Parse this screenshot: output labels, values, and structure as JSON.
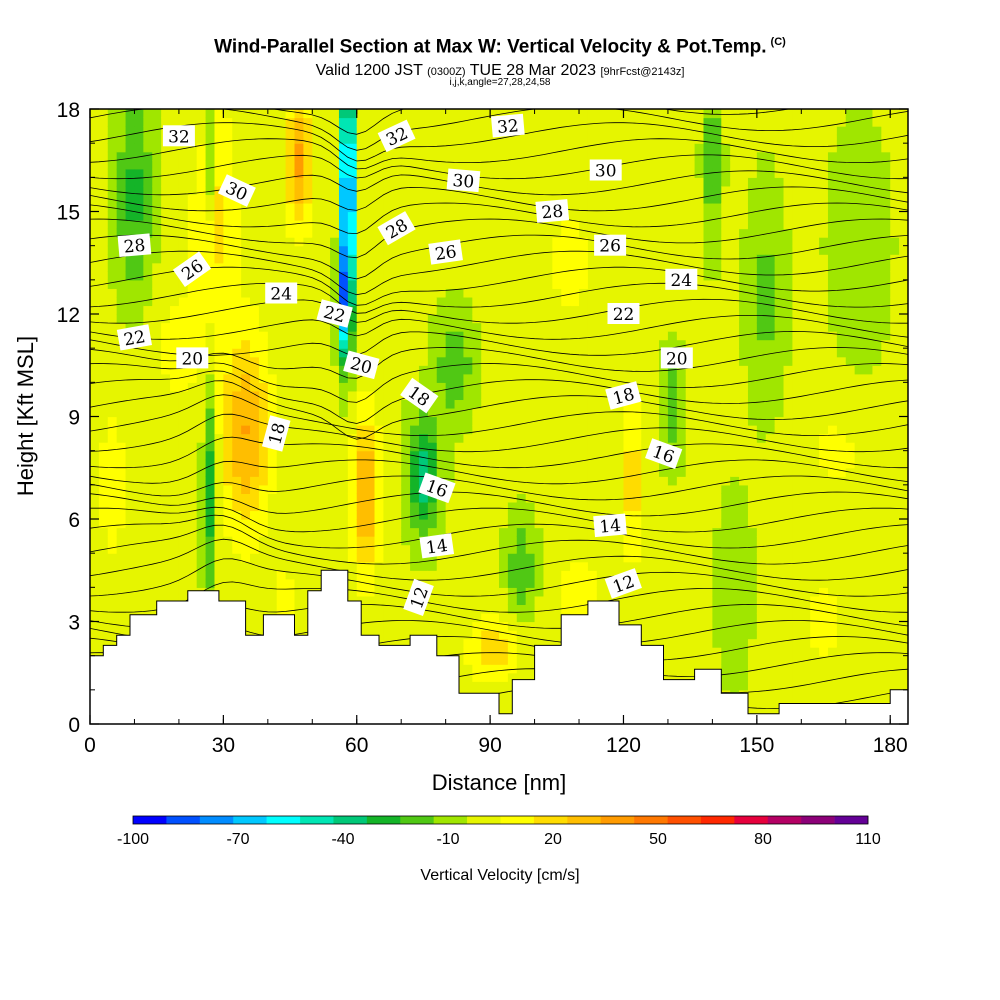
{
  "title": {
    "main": "Wind-Parallel Section at Max W: Vertical Velocity & Pot.Temp.",
    "copyright": "(C)",
    "valid_prefix": "Valid 1200 JST",
    "valid_utc": "(0300Z)",
    "valid_date": "TUE 28 Mar 2023",
    "forecast": "[9hrFcst@2143z]",
    "section_params": "i,j,k,angle=27,28,24,58"
  },
  "chart_data": {
    "type": "heatmap",
    "xlabel": "Distance [nm]",
    "ylabel": "Height [Kft MSL]",
    "xlim": [
      0,
      184
    ],
    "ylim": [
      0,
      18
    ],
    "x_ticks": [
      "0",
      "30",
      "60",
      "90",
      "120",
      "150",
      "180"
    ],
    "y_ticks": [
      "0",
      "3",
      "6",
      "9",
      "12",
      "15",
      "18"
    ],
    "colorbar": {
      "label": "Vertical Velocity [cm/s]",
      "tick_labels": [
        "-100",
        "-70",
        "-40",
        "-10",
        "20",
        "50",
        "80",
        "110"
      ],
      "levels": [
        -100,
        -90,
        -80,
        -70,
        -60,
        -50,
        -40,
        -30,
        -20,
        -10,
        0,
        10,
        20,
        30,
        40,
        50,
        60,
        70,
        80,
        90,
        100,
        110
      ],
      "colors": [
        "#0000ff",
        "#0050ff",
        "#008cff",
        "#00c8ff",
        "#00ffff",
        "#00e6b4",
        "#00c878",
        "#14b428",
        "#50c814",
        "#a0e600",
        "#e6f500",
        "#ffff00",
        "#ffdc00",
        "#ffbe00",
        "#ff9b00",
        "#ff7800",
        "#ff5000",
        "#ff2800",
        "#e6003c",
        "#b40064",
        "#8c0078",
        "#640096"
      ]
    },
    "terrain_kft": [
      [
        0,
        2.0
      ],
      [
        3,
        2.0
      ],
      [
        3,
        2.3
      ],
      [
        6,
        2.3
      ],
      [
        6,
        2.6
      ],
      [
        9,
        2.6
      ],
      [
        9,
        3.2
      ],
      [
        15,
        3.2
      ],
      [
        15,
        3.6
      ],
      [
        22,
        3.6
      ],
      [
        22,
        3.9
      ],
      [
        29,
        3.9
      ],
      [
        29,
        3.6
      ],
      [
        35,
        3.6
      ],
      [
        35,
        2.6
      ],
      [
        39,
        2.6
      ],
      [
        39,
        3.2
      ],
      [
        46,
        3.2
      ],
      [
        46,
        2.6
      ],
      [
        49,
        2.6
      ],
      [
        49,
        3.9
      ],
      [
        52,
        3.9
      ],
      [
        52,
        4.5
      ],
      [
        58,
        4.5
      ],
      [
        58,
        3.6
      ],
      [
        61,
        3.6
      ],
      [
        61,
        2.6
      ],
      [
        65,
        2.6
      ],
      [
        65,
        2.3
      ],
      [
        72,
        2.3
      ],
      [
        72,
        2.6
      ],
      [
        78,
        2.6
      ],
      [
        78,
        2.0
      ],
      [
        83,
        2.0
      ],
      [
        83,
        0.9
      ],
      [
        92,
        0.9
      ],
      [
        92,
        0.3
      ],
      [
        95,
        0.3
      ],
      [
        95,
        1.3
      ],
      [
        100,
        1.3
      ],
      [
        100,
        2.3
      ],
      [
        106,
        2.3
      ],
      [
        106,
        3.2
      ],
      [
        112,
        3.2
      ],
      [
        112,
        3.6
      ],
      [
        119,
        3.6
      ],
      [
        119,
        2.9
      ],
      [
        124,
        2.9
      ],
      [
        124,
        2.3
      ],
      [
        129,
        2.3
      ],
      [
        129,
        1.3
      ],
      [
        136,
        1.3
      ],
      [
        136,
        1.6
      ],
      [
        142,
        1.6
      ],
      [
        142,
        0.9
      ],
      [
        148,
        0.9
      ],
      [
        148,
        0.3
      ],
      [
        155,
        0.3
      ],
      [
        155,
        0.6
      ],
      [
        180,
        0.6
      ],
      [
        180,
        1.0
      ],
      [
        184,
        1.0
      ]
    ],
    "isentropes": [
      {
        "level": "12",
        "x": 74,
        "y": 3.7,
        "angle": -70
      },
      {
        "level": "14",
        "x": 78,
        "y": 5.2,
        "angle": -8
      },
      {
        "level": "16",
        "x": 78,
        "y": 6.9,
        "angle": 20
      },
      {
        "level": "18",
        "x": 42,
        "y": 8.5,
        "angle": -75
      },
      {
        "level": "18",
        "x": 74,
        "y": 9.6,
        "angle": 35
      },
      {
        "level": "18",
        "x": 120,
        "y": 9.6,
        "angle": -15
      },
      {
        "level": "20",
        "x": 23,
        "y": 10.7,
        "angle": 0
      },
      {
        "level": "20",
        "x": 61,
        "y": 10.5,
        "angle": 15
      },
      {
        "level": "20",
        "x": 132,
        "y": 10.7,
        "angle": 0
      },
      {
        "level": "14",
        "x": 117,
        "y": 5.8,
        "angle": -5
      },
      {
        "level": "12",
        "x": 120,
        "y": 4.1,
        "angle": -20
      },
      {
        "level": "16",
        "x": 129,
        "y": 7.9,
        "angle": 20
      },
      {
        "level": "22",
        "x": 10,
        "y": 11.3,
        "angle": -10
      },
      {
        "level": "22",
        "x": 55,
        "y": 12.0,
        "angle": 15
      },
      {
        "level": "22",
        "x": 120,
        "y": 12.0,
        "angle": 0
      },
      {
        "level": "24",
        "x": 43,
        "y": 12.6,
        "angle": 0
      },
      {
        "level": "24",
        "x": 133,
        "y": 13.0,
        "angle": 0
      },
      {
        "level": "26",
        "x": 23,
        "y": 13.3,
        "angle": -35
      },
      {
        "level": "26",
        "x": 80,
        "y": 13.8,
        "angle": -8
      },
      {
        "level": "26",
        "x": 117,
        "y": 14.0,
        "angle": 0
      },
      {
        "level": "28",
        "x": 10,
        "y": 14.0,
        "angle": -5
      },
      {
        "level": "28",
        "x": 69,
        "y": 14.5,
        "angle": -30
      },
      {
        "level": "28",
        "x": 104,
        "y": 15.0,
        "angle": -5
      },
      {
        "level": "30",
        "x": 33,
        "y": 15.6,
        "angle": 25
      },
      {
        "level": "30",
        "x": 84,
        "y": 15.9,
        "angle": 5
      },
      {
        "level": "30",
        "x": 116,
        "y": 16.2,
        "angle": 0
      },
      {
        "level": "32",
        "x": 20,
        "y": 17.2,
        "angle": 0
      },
      {
        "level": "32",
        "x": 69,
        "y": 17.2,
        "angle": -25
      },
      {
        "level": "32",
        "x": 94,
        "y": 17.5,
        "angle": -5
      }
    ]
  }
}
